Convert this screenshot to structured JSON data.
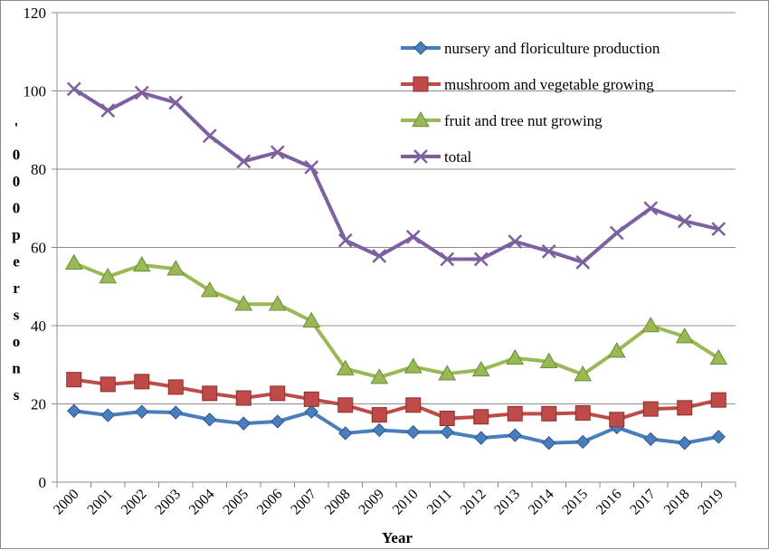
{
  "chart_data": {
    "type": "line",
    "title": "",
    "xlabel": "Year",
    "ylabel": "'000 persons",
    "ylim": [
      0,
      120
    ],
    "yticks": [
      0,
      20,
      40,
      60,
      80,
      100,
      120
    ],
    "grid": "horizontal",
    "legend_position": "top-right",
    "x": [
      "2000",
      "2001",
      "2002",
      "2003",
      "2004",
      "2005",
      "2006",
      "2007",
      "2008",
      "2009",
      "2010",
      "2011",
      "2012",
      "2013",
      "2014",
      "2015",
      "2016",
      "2017",
      "2018",
      "2019"
    ],
    "series": [
      {
        "name": "nursery and floriculture production",
        "color": "#4a7ebb",
        "marker": "diamond",
        "values": [
          18.2,
          17.1,
          18.0,
          17.8,
          16.0,
          15.0,
          15.5,
          18.0,
          12.5,
          13.3,
          12.8,
          12.8,
          11.3,
          12.0,
          10.0,
          10.3,
          14.0,
          11.0,
          10.0,
          11.6
        ]
      },
      {
        "name": "mushroom and vegetable growing",
        "color": "#be4b48",
        "marker": "square",
        "values": [
          26.2,
          25.0,
          25.7,
          24.3,
          22.7,
          21.5,
          22.7,
          21.2,
          19.7,
          17.2,
          19.7,
          16.3,
          16.7,
          17.5,
          17.5,
          17.7,
          16.0,
          18.7,
          19.0,
          21.0
        ]
      },
      {
        "name": "fruit and tree nut growing",
        "color": "#98b954",
        "marker": "triangle",
        "values": [
          56.0,
          52.5,
          55.5,
          54.5,
          49.0,
          45.5,
          45.5,
          41.2,
          29.0,
          26.8,
          29.5,
          27.7,
          28.7,
          31.7,
          30.8,
          27.5,
          33.5,
          40.0,
          37.2,
          31.7
        ]
      },
      {
        "name": "total",
        "color": "#7d60a0",
        "marker": "x",
        "values": [
          100.5,
          95.0,
          99.5,
          97.0,
          88.5,
          82.0,
          84.3,
          80.5,
          61.8,
          57.8,
          62.7,
          57.0,
          57.0,
          61.5,
          59.0,
          56.2,
          63.7,
          70.0,
          66.7,
          64.7
        ]
      }
    ]
  }
}
